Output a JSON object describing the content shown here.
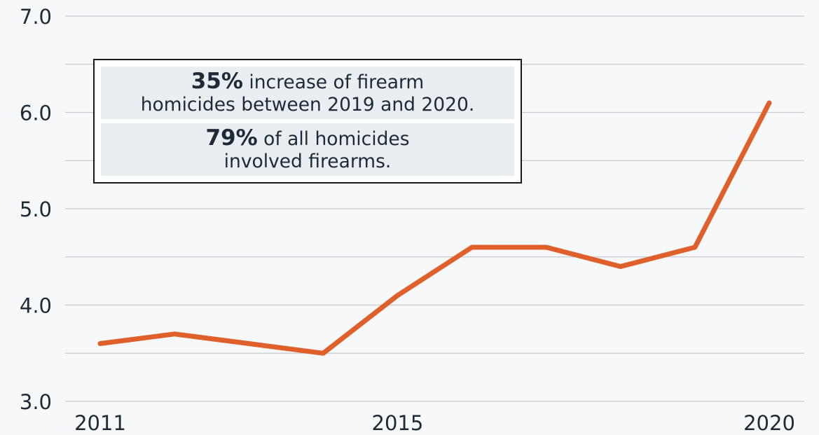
{
  "chart_data": {
    "type": "line",
    "title": "",
    "xlabel": "",
    "ylabel": "",
    "ylim": [
      3.0,
      7.0
    ],
    "xlim": [
      2011,
      2020
    ],
    "y_ticks": [
      "3.0",
      "4.0",
      "5.0",
      "6.0",
      "7.0"
    ],
    "y_tick_values": [
      3.0,
      4.0,
      5.0,
      6.0,
      7.0
    ],
    "y_gridlines": [
      3.0,
      3.5,
      4.0,
      4.5,
      5.0,
      5.5,
      6.0,
      6.5,
      7.0
    ],
    "x_ticks": [
      "2011",
      "2015",
      "2020"
    ],
    "x_tick_values": [
      2011,
      2015,
      2020
    ],
    "grid": true,
    "legend": "none",
    "series": [
      {
        "color": "#e0602b",
        "x": [
          2011,
          2012,
          2013,
          2014,
          2015,
          2016,
          2017,
          2018,
          2019,
          2020
        ],
        "values": [
          3.6,
          3.7,
          3.6,
          3.5,
          4.1,
          4.6,
          4.6,
          4.4,
          4.6,
          6.1
        ]
      }
    ]
  },
  "callout": {
    "stat1_value": "35%",
    "stat1_text_line1": " increase of firearm",
    "stat1_text_line2": "homicides between 2019 and 2020.",
    "stat2_value": "79%",
    "stat2_text_line1": " of all homicides",
    "stat2_text_line2": "involved firearms."
  }
}
